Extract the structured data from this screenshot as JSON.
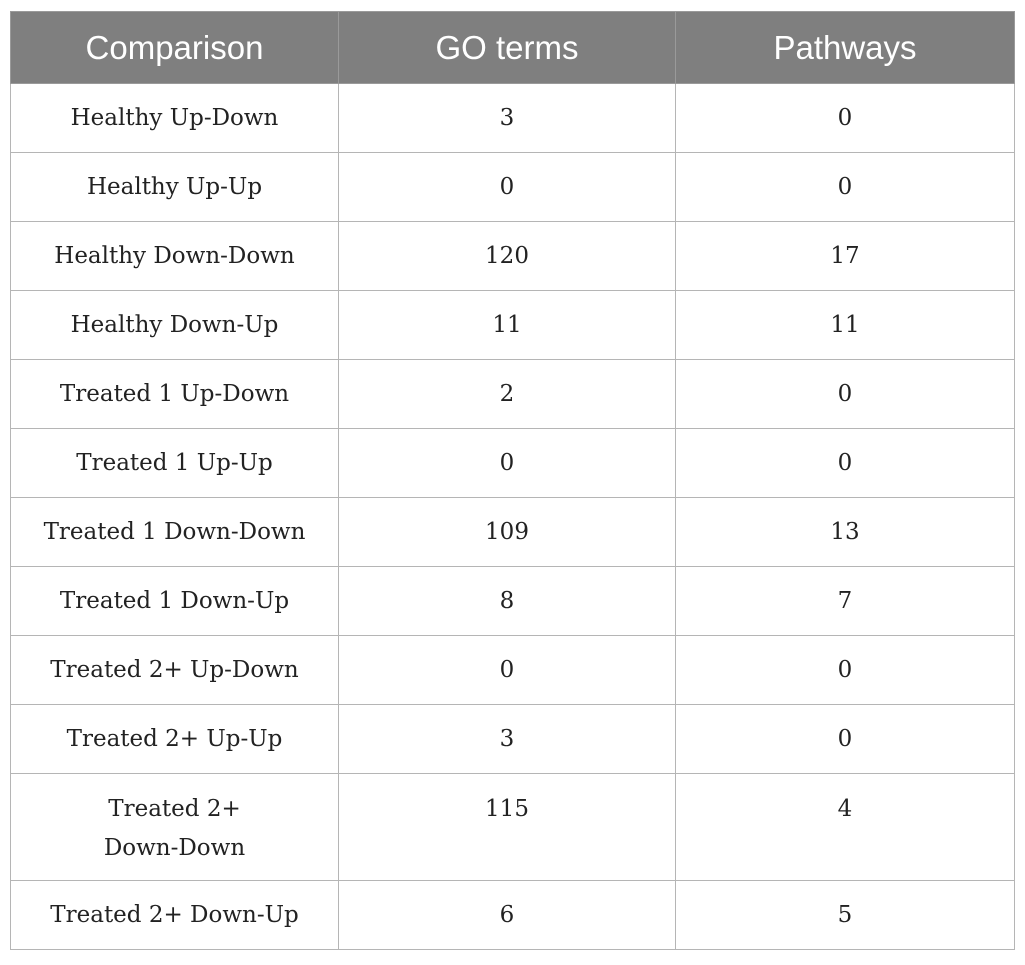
{
  "table": {
    "headers": [
      "Comparison",
      "GO terms",
      "Pathways"
    ],
    "rows": [
      {
        "comparison": "Healthy Up-Down",
        "go_terms": "3",
        "pathways": "0"
      },
      {
        "comparison": "Healthy Up-Up",
        "go_terms": "0",
        "pathways": "0"
      },
      {
        "comparison": "Healthy Down-Down",
        "go_terms": "120",
        "pathways": "17"
      },
      {
        "comparison": "Healthy Down-Up",
        "go_terms": "11",
        "pathways": "11"
      },
      {
        "comparison": "Treated 1 Up-Down",
        "go_terms": "2",
        "pathways": "0"
      },
      {
        "comparison": "Treated 1 Up-Up",
        "go_terms": "0",
        "pathways": "0"
      },
      {
        "comparison": "Treated 1 Down-Down",
        "go_terms": "109",
        "pathways": "13"
      },
      {
        "comparison": "Treated 1 Down-Up",
        "go_terms": "8",
        "pathways": "7"
      },
      {
        "comparison": "Treated 2+ Up-Down",
        "go_terms": "0",
        "pathways": "0"
      },
      {
        "comparison": "Treated 2+ Up-Up",
        "go_terms": "3",
        "pathways": "0"
      },
      {
        "comparison": "Treated 2+ Down-Down",
        "comparison_line1": "Treated 2+",
        "comparison_line2": "Down-Down",
        "go_terms": "115",
        "pathways": "4"
      },
      {
        "comparison": "Treated 2+ Down-Up",
        "go_terms": "6",
        "pathways": "5"
      }
    ]
  }
}
